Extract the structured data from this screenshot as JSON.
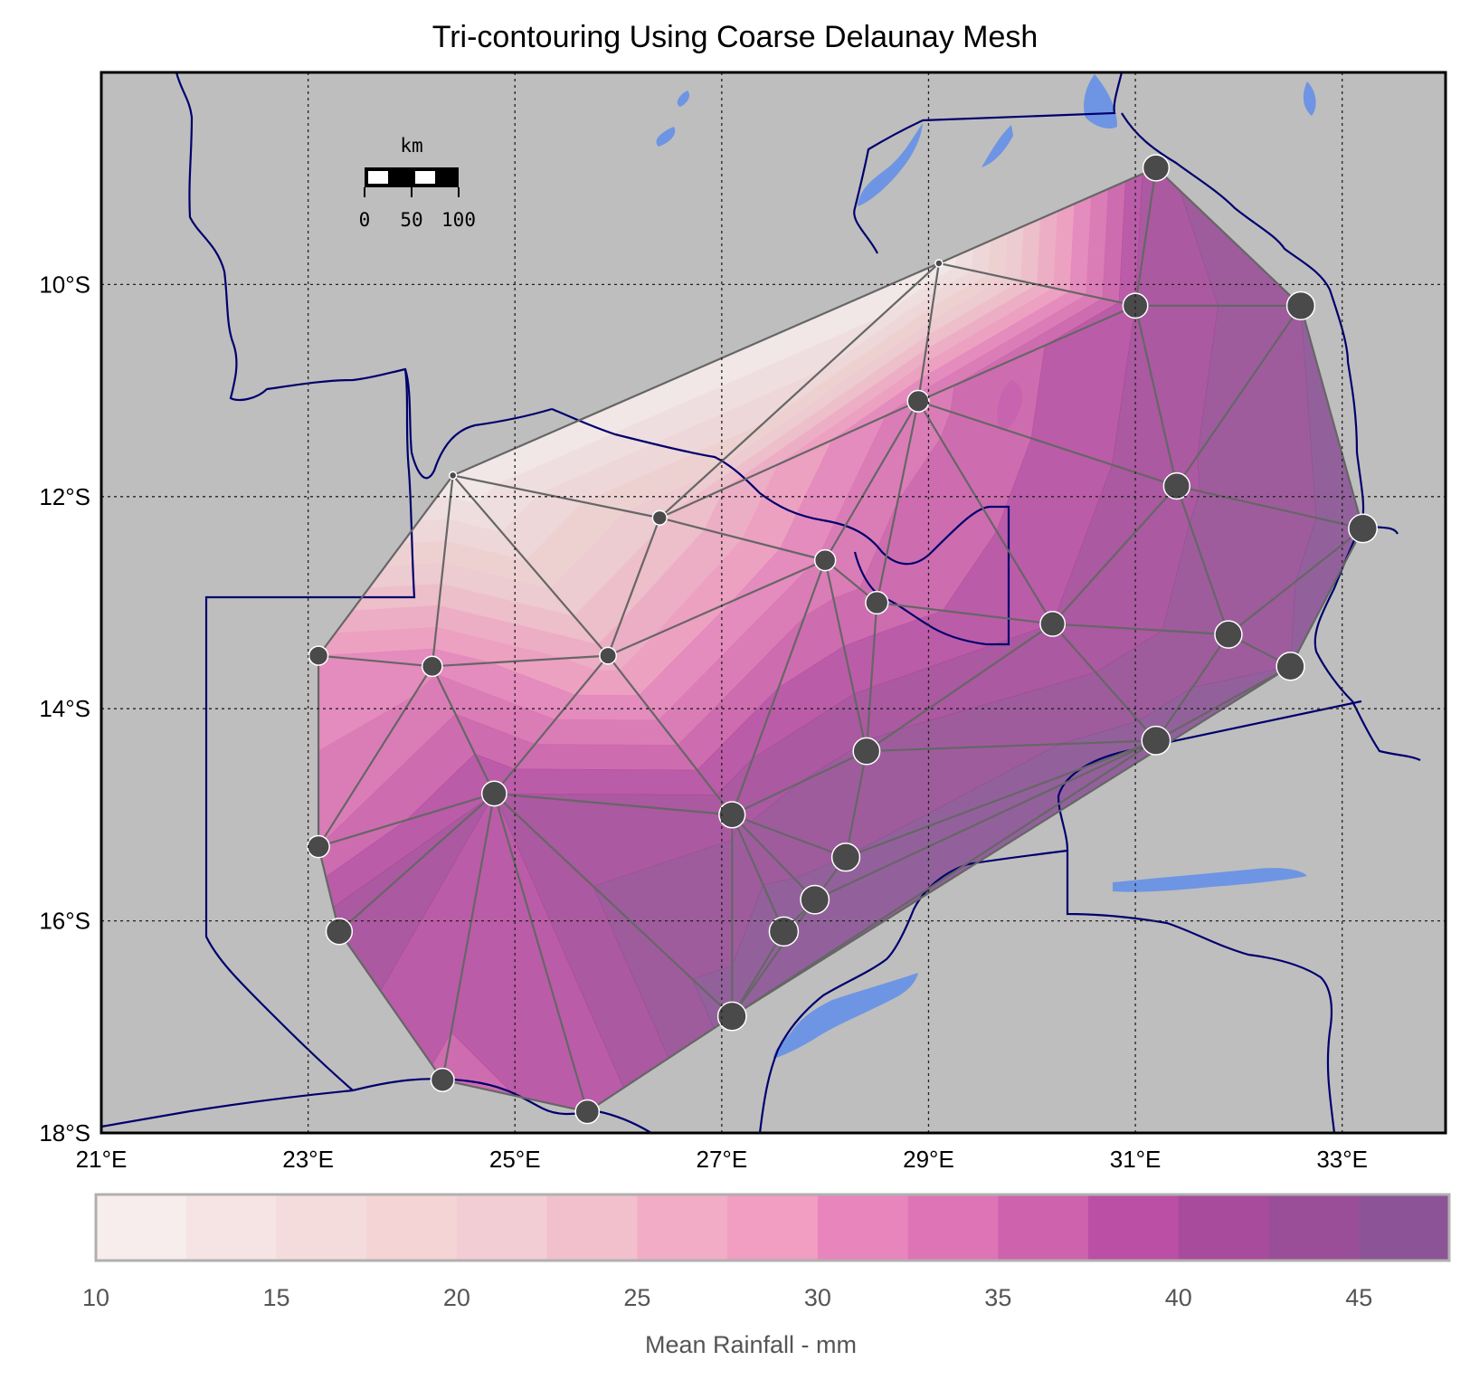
{
  "title": "Tri-contouring Using Coarse Delaunay Mesh",
  "colors": {
    "ocean_land": "#bebebe",
    "water": "#6e95e3",
    "border": "#00006e",
    "mesh": "#666666",
    "marker": "#4a4a4a",
    "cmap": [
      "#f8eded",
      "#f6e3e4",
      "#f4dbdc",
      "#f4d4d4",
      "#f3cdd4",
      "#f2bfcc",
      "#f2acc6",
      "#f29dc2",
      "#e985bd",
      "#de74b6",
      "#cf62ad",
      "#bb4ea5",
      "#a84b9c",
      "#9a4e98",
      "#8c5496"
    ]
  },
  "scalebar": {
    "unit": "km",
    "labels": [
      "0",
      "50",
      "100"
    ]
  },
  "axes": {
    "x_ticks": [
      "21°E",
      "23°E",
      "25°E",
      "27°E",
      "29°E",
      "31°E",
      "33°E"
    ],
    "y_ticks": [
      "10°S",
      "12°S",
      "14°S",
      "16°S",
      "18°S"
    ]
  },
  "colorbar": {
    "label": "Mean Rainfall - mm",
    "ticks": [
      "10",
      "15",
      "20",
      "25",
      "30",
      "35",
      "40",
      "45"
    ],
    "min": 10,
    "max": 47.5,
    "step": 2.5
  },
  "chart_data": {
    "type": "contour",
    "title": "Tri-contouring Using Coarse Delaunay Mesh",
    "colorbar_label": "Mean Rainfall - mm",
    "lon_range": [
      21,
      34
    ],
    "lat_range": [
      -18,
      -8
    ],
    "stations": [
      {
        "lon": 31.2,
        "lat": -8.9,
        "value": 42
      },
      {
        "lon": 29.1,
        "lat": -9.8,
        "value": 10
      },
      {
        "lon": 31.0,
        "lat": -10.2,
        "value": 40
      },
      {
        "lon": 32.6,
        "lat": -10.2,
        "value": 45
      },
      {
        "lon": 28.9,
        "lat": -11.1,
        "value": 34
      },
      {
        "lon": 24.4,
        "lat": -11.8,
        "value": 10
      },
      {
        "lon": 31.4,
        "lat": -11.9,
        "value": 42
      },
      {
        "lon": 26.4,
        "lat": -12.2,
        "value": 22
      },
      {
        "lon": 33.2,
        "lat": -12.3,
        "value": 46
      },
      {
        "lon": 28.0,
        "lat": -12.6,
        "value": 33
      },
      {
        "lon": 28.5,
        "lat": -13.0,
        "value": 36
      },
      {
        "lon": 30.2,
        "lat": -13.2,
        "value": 40
      },
      {
        "lon": 31.9,
        "lat": -13.3,
        "value": 44
      },
      {
        "lon": 23.1,
        "lat": -13.5,
        "value": 30
      },
      {
        "lon": 25.9,
        "lat": -13.5,
        "value": 26
      },
      {
        "lon": 24.2,
        "lat": -13.6,
        "value": 32
      },
      {
        "lon": 32.5,
        "lat": -13.6,
        "value": 45
      },
      {
        "lon": 31.2,
        "lat": -14.3,
        "value": 46
      },
      {
        "lon": 28.4,
        "lat": -14.4,
        "value": 43
      },
      {
        "lon": 24.8,
        "lat": -14.8,
        "value": 40
      },
      {
        "lon": 27.1,
        "lat": -15.0,
        "value": 42
      },
      {
        "lon": 23.1,
        "lat": -15.3,
        "value": 35
      },
      {
        "lon": 28.2,
        "lat": -15.4,
        "value": 45
      },
      {
        "lon": 27.9,
        "lat": -15.8,
        "value": 46
      },
      {
        "lon": 23.3,
        "lat": -16.1,
        "value": 42
      },
      {
        "lon": 27.6,
        "lat": -16.1,
        "value": 47
      },
      {
        "lon": 27.1,
        "lat": -16.9,
        "value": 46
      },
      {
        "lon": 24.3,
        "lat": -17.5,
        "value": 37
      },
      {
        "lon": 25.7,
        "lat": -17.8,
        "value": 38
      }
    ],
    "levels": [
      10,
      12.5,
      15,
      17.5,
      20,
      22.5,
      25,
      27.5,
      30,
      32.5,
      35,
      37.5,
      40,
      42.5,
      45,
      47.5
    ]
  }
}
